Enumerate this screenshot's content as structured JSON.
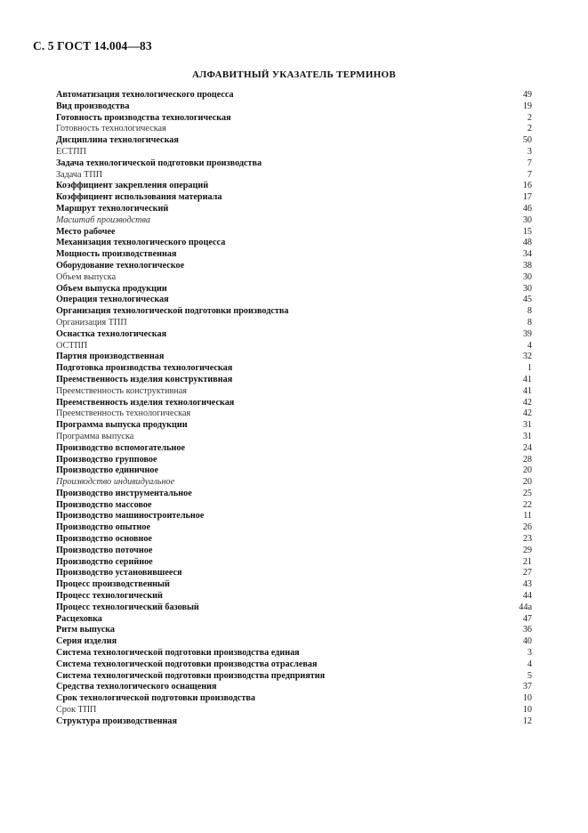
{
  "header": "С. 5 ГОСТ 14.004—83",
  "title": "АЛФАВИТНЫЙ УКАЗАТЕЛЬ ТЕРМИНОВ",
  "entries": [
    {
      "term": "Автоматизация технологического процесса",
      "page": "49",
      "style": "bold"
    },
    {
      "term": "Вид производства",
      "page": "19",
      "style": "bold"
    },
    {
      "term": "Готовность производства технологическая",
      "page": "2",
      "style": "bold"
    },
    {
      "term": "Готовность технологическая",
      "page": "2",
      "style": "normal"
    },
    {
      "term": "Дисциплина технологическая",
      "page": "50",
      "style": "bold"
    },
    {
      "term": "ЕСТПП",
      "page": "3",
      "style": "normal"
    },
    {
      "term": "Задача технологической подготовки производства",
      "page": "7",
      "style": "bold"
    },
    {
      "term": "Задача ТПП",
      "page": "7",
      "style": "normal"
    },
    {
      "term": "Коэффициент закрепления операций",
      "page": "16",
      "style": "bold"
    },
    {
      "term": "Коэффициент использования материала",
      "page": "17",
      "style": "bold"
    },
    {
      "term": "Маршрут технологический",
      "page": "46",
      "style": "bold"
    },
    {
      "term": "Масштаб производства",
      "page": "30",
      "style": "italic"
    },
    {
      "term": "Место рабочее",
      "page": "15",
      "style": "bold"
    },
    {
      "term": "Механизация технологического процесса",
      "page": "48",
      "style": "bold"
    },
    {
      "term": "Мощность производственная",
      "page": "34",
      "style": "bold"
    },
    {
      "term": "Оборудование технологическое",
      "page": "38",
      "style": "bold"
    },
    {
      "term": "Объем выпуска",
      "page": "30",
      "style": "normal"
    },
    {
      "term": "Объем выпуска продукции",
      "page": "30",
      "style": "bold"
    },
    {
      "term": "Операция технологическая",
      "page": "45",
      "style": "bold"
    },
    {
      "term": "Организация технологической подготовки производства",
      "page": "8",
      "style": "bold"
    },
    {
      "term": "Организация ТПП",
      "page": "8",
      "style": "normal"
    },
    {
      "term": "Оснастка технологическая",
      "page": "39",
      "style": "bold"
    },
    {
      "term": "ОСТПП",
      "page": "4",
      "style": "normal"
    },
    {
      "term": "Партия производственная",
      "page": "32",
      "style": "bold"
    },
    {
      "term": "Подготовка производства технологическая",
      "page": "1",
      "style": "bold"
    },
    {
      "term": "Преемственность изделия конструктивная",
      "page": "41",
      "style": "bold"
    },
    {
      "term": "Преемственность конструктивная",
      "page": "41",
      "style": "normal"
    },
    {
      "term": "Преемственность изделия технологическая",
      "page": "42",
      "style": "bold"
    },
    {
      "term": "Преемственность технологическая",
      "page": "42",
      "style": "normal"
    },
    {
      "term": "Программа выпуска продукции",
      "page": "31",
      "style": "bold"
    },
    {
      "term": "Программа выпуска",
      "page": "31",
      "style": "normal"
    },
    {
      "term": "Производство вспомогательное",
      "page": "24",
      "style": "bold"
    },
    {
      "term": "Производство групповое",
      "page": "28",
      "style": "bold"
    },
    {
      "term": "Производство единичное",
      "page": "20",
      "style": "bold"
    },
    {
      "term": "Производство индивидуальное",
      "page": "20",
      "style": "italic"
    },
    {
      "term": "Производство инструментальное",
      "page": "25",
      "style": "bold"
    },
    {
      "term": "Производство массовое",
      "page": "22",
      "style": "bold"
    },
    {
      "term": "Производство машиностроительное",
      "page": "11",
      "style": "bold"
    },
    {
      "term": "Производство опытное",
      "page": "26",
      "style": "bold"
    },
    {
      "term": "Производство основное",
      "page": "23",
      "style": "bold"
    },
    {
      "term": "Производство поточное",
      "page": "29",
      "style": "bold"
    },
    {
      "term": "Производство серийное",
      "page": "21",
      "style": "bold"
    },
    {
      "term": "Производство установившееся",
      "page": "27",
      "style": "bold"
    },
    {
      "term": "Процесс производственный",
      "page": "43",
      "style": "bold"
    },
    {
      "term": "Процесс технологический",
      "page": "44",
      "style": "bold"
    },
    {
      "term": "Процесс технологический базовый",
      "page": "44а",
      "style": "bold"
    },
    {
      "term": "Расцеховка",
      "page": "47",
      "style": "bold"
    },
    {
      "term": "Ритм выпуска",
      "page": "36",
      "style": "bold"
    },
    {
      "term": "Серия изделия",
      "page": "40",
      "style": "bold"
    },
    {
      "term": "Система технологической подготовки производства единая",
      "page": "3",
      "style": "bold"
    },
    {
      "term": "Система технологической подготовки производства отраслевая",
      "page": "4",
      "style": "bold"
    },
    {
      "term": "Система технологической подготовки производства предприятия",
      "page": "5",
      "style": "bold"
    },
    {
      "term": "Средства технологического оснащения",
      "page": "37",
      "style": "bold"
    },
    {
      "term": "Срок технологической подготовки производства",
      "page": "10",
      "style": "bold"
    },
    {
      "term": "Срок ТПП",
      "page": "10",
      "style": "normal"
    },
    {
      "term": "Структура производственная",
      "page": "12",
      "style": "bold"
    }
  ]
}
